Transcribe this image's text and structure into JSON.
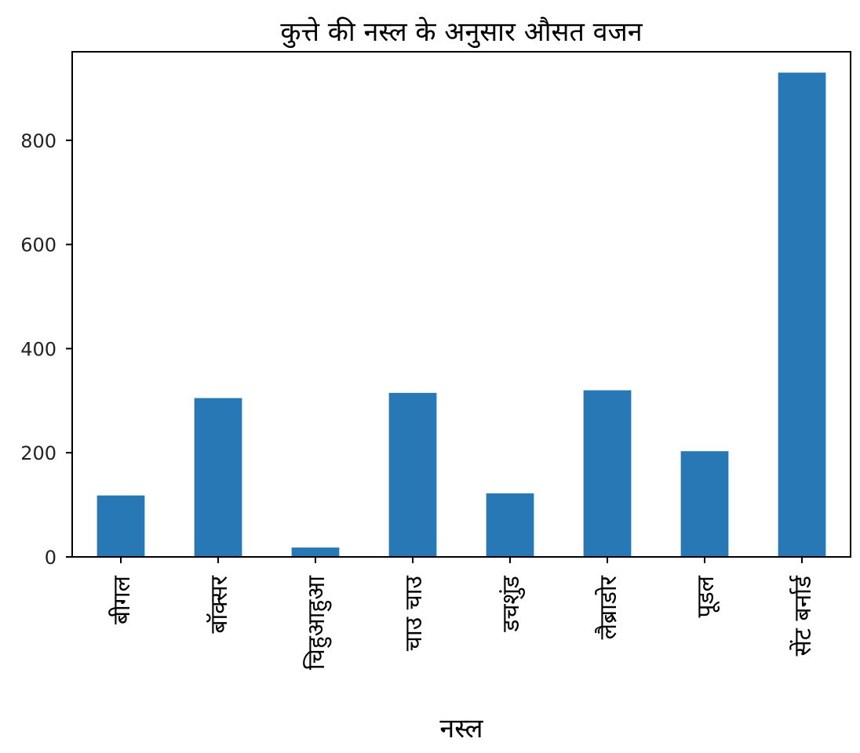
{
  "chart_data": {
    "type": "bar",
    "title": "कुत्ते की नस्ल के अनुसार औसत वजन",
    "xlabel": "नस्ल",
    "ylabel": "",
    "categories": [
      "बीगल",
      "बॉक्सर",
      "चिहुआहुआ",
      "चाउ चाउ",
      "डचशुंड",
      "लैब्राडोर",
      "पूडल",
      "सेंट बर्नार्ड"
    ],
    "values": [
      118,
      305,
      18,
      315,
      122,
      320,
      203,
      930
    ],
    "ylim": [
      0,
      970
    ],
    "yticks": [
      0,
      200,
      400,
      600,
      800
    ],
    "grid": false,
    "bar_color": "#2878b5"
  }
}
